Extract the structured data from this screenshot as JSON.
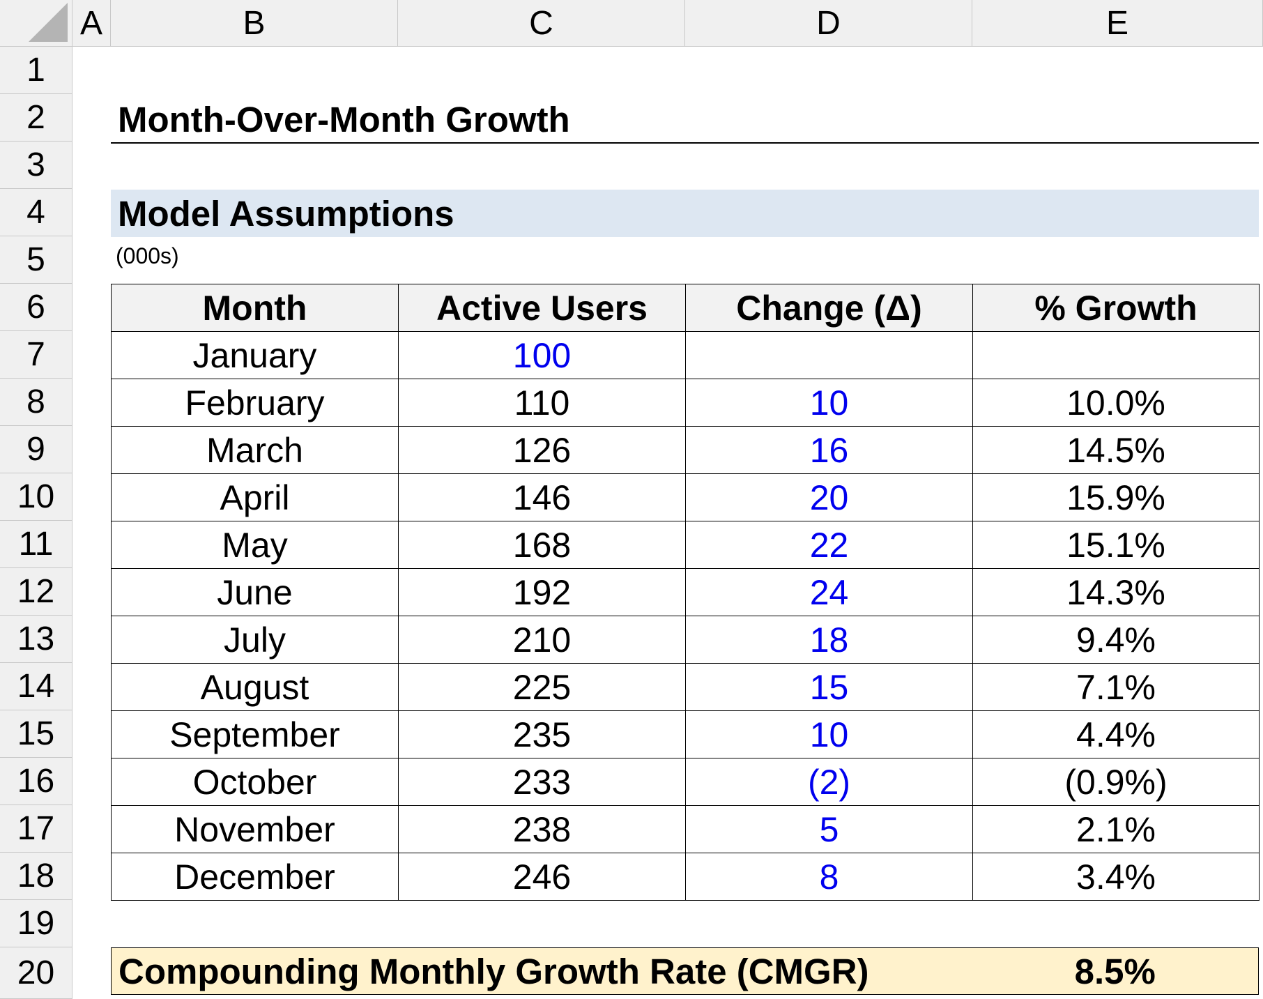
{
  "spreadsheet": {
    "columns": [
      "A",
      "B",
      "C",
      "D",
      "E"
    ],
    "rows": [
      "1",
      "2",
      "3",
      "4",
      "5",
      "6",
      "7",
      "8",
      "9",
      "10",
      "11",
      "12",
      "13",
      "14",
      "15",
      "16",
      "17",
      "18",
      "19",
      "20"
    ]
  },
  "title": "Month-Over-Month Growth",
  "section_title": "Model Assumptions",
  "units": "(000s)",
  "table": {
    "headers": {
      "month": "Month",
      "active_users": "Active Users",
      "change": "Change (Δ)",
      "growth": "% Growth"
    },
    "rows": [
      {
        "month": "January",
        "active_users": "100",
        "change": "",
        "growth": ""
      },
      {
        "month": "February",
        "active_users": "110",
        "change": "10",
        "growth": "10.0%"
      },
      {
        "month": "March",
        "active_users": "126",
        "change": "16",
        "growth": "14.5%"
      },
      {
        "month": "April",
        "active_users": "146",
        "change": "20",
        "growth": "15.9%"
      },
      {
        "month": "May",
        "active_users": "168",
        "change": "22",
        "growth": "15.1%"
      },
      {
        "month": "June",
        "active_users": "192",
        "change": "24",
        "growth": "14.3%"
      },
      {
        "month": "July",
        "active_users": "210",
        "change": "18",
        "growth": "9.4%"
      },
      {
        "month": "August",
        "active_users": "225",
        "change": "15",
        "growth": "7.1%"
      },
      {
        "month": "September",
        "active_users": "235",
        "change": "10",
        "growth": "4.4%"
      },
      {
        "month": "October",
        "active_users": "233",
        "change": "(2)",
        "growth": "(0.9%)"
      },
      {
        "month": "November",
        "active_users": "238",
        "change": "5",
        "growth": "2.1%"
      },
      {
        "month": "December",
        "active_users": "246",
        "change": "8",
        "growth": "3.4%"
      }
    ]
  },
  "cmgr": {
    "label": "Compounding Monthly Growth Rate (CMGR)",
    "value": "8.5%"
  },
  "colors": {
    "input_blue": "#0000ee",
    "section_fill": "#dde7f2",
    "cmgr_fill": "#fff2cc",
    "header_fill": "#f0f0f0"
  }
}
